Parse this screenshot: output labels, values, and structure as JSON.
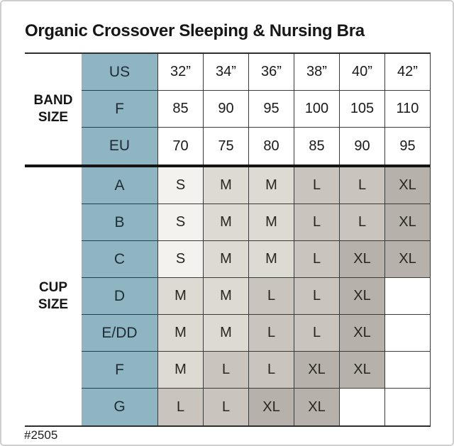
{
  "page": {
    "title": "Organic Crossover Sleeping & Nursing Bra",
    "footer_code": "#2505"
  },
  "chart_data": {
    "type": "table",
    "title": "Organic Crossover Sleeping & Nursing Bra",
    "style_number": "#2505",
    "colors": {
      "header_teal": "#8fb5c3",
      "band": "#ffffff",
      "size_s": "#f4f2ef",
      "size_m": "#dddad4",
      "size_l": "#c9c4be",
      "size_xl": "#b7b1ab",
      "empty": "#ffffff",
      "grid_line": "#3a3a3a",
      "section_divider": "#141414"
    },
    "row_groups": [
      {
        "group_label": "BAND SIZE",
        "rows": [
          {
            "label": "US",
            "values": [
              "32”",
              "34”",
              "36”",
              "38”",
              "40”",
              "42”"
            ]
          },
          {
            "label": "F",
            "values": [
              "85",
              "90",
              "95",
              "100",
              "105",
              "110"
            ]
          },
          {
            "label": "EU",
            "values": [
              "70",
              "75",
              "80",
              "85",
              "90",
              "95"
            ]
          }
        ]
      },
      {
        "group_label": "CUP SIZE",
        "rows": [
          {
            "label": "A",
            "values": [
              "S",
              "M",
              "M",
              "L",
              "L",
              "XL"
            ]
          },
          {
            "label": "B",
            "values": [
              "S",
              "M",
              "M",
              "L",
              "L",
              "XL"
            ]
          },
          {
            "label": "C",
            "values": [
              "S",
              "M",
              "M",
              "L",
              "XL",
              "XL"
            ]
          },
          {
            "label": "D",
            "values": [
              "M",
              "M",
              "L",
              "L",
              "XL",
              ""
            ]
          },
          {
            "label": "E/DD",
            "values": [
              "M",
              "M",
              "L",
              "L",
              "XL",
              ""
            ]
          },
          {
            "label": "F",
            "values": [
              "M",
              "L",
              "L",
              "XL",
              "XL",
              ""
            ]
          },
          {
            "label": "G",
            "values": [
              "L",
              "L",
              "XL",
              "XL",
              "",
              ""
            ]
          }
        ]
      }
    ]
  }
}
